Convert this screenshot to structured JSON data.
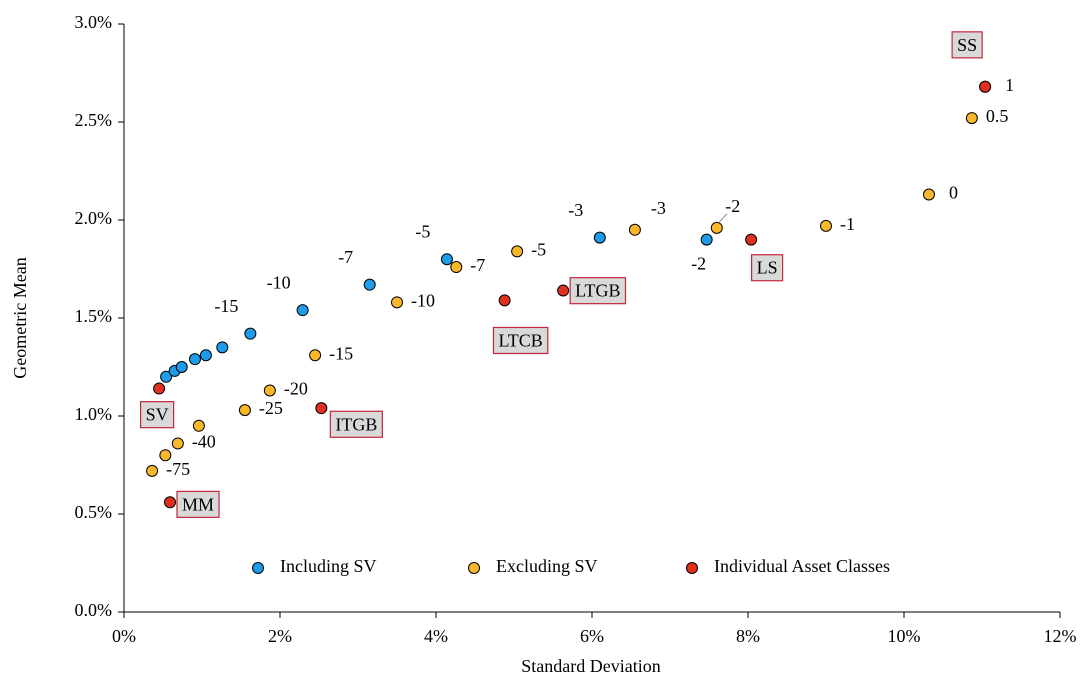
{
  "chart_data": {
    "type": "scatter",
    "xlabel": "Standard Deviation",
    "ylabel": "Geometric Mean",
    "xlim": [
      0,
      12
    ],
    "ylim": [
      0,
      3
    ],
    "xticks": [
      {
        "value": 0,
        "label": "0%"
      },
      {
        "value": 2,
        "label": "2%"
      },
      {
        "value": 4,
        "label": "4%"
      },
      {
        "value": 6,
        "label": "6%"
      },
      {
        "value": 8,
        "label": "8%"
      },
      {
        "value": 10,
        "label": "10%"
      },
      {
        "value": 12,
        "label": "12%"
      }
    ],
    "yticks": [
      {
        "value": 0,
        "label": "0.0%"
      },
      {
        "value": 0.5,
        "label": "0.5%"
      },
      {
        "value": 1,
        "label": "1.0%"
      },
      {
        "value": 1.5,
        "label": "1.5%"
      },
      {
        "value": 2,
        "label": "2.0%"
      },
      {
        "value": 2.5,
        "label": "2.5%"
      },
      {
        "value": 3,
        "label": "3.0%"
      }
    ],
    "legend": "bottom",
    "series": [
      {
        "name": "Including SV",
        "color": "#1e9be9",
        "x": [
          0.54,
          0.65,
          0.74,
          0.91,
          1.05,
          1.26,
          1.62,
          2.29,
          3.15,
          4.14,
          6.1,
          7.47
        ],
        "values": [
          1.2,
          1.23,
          1.25,
          1.29,
          1.31,
          1.35,
          1.42,
          1.54,
          1.67,
          1.8,
          1.91,
          1.9
        ],
        "point_labels": [
          null,
          null,
          null,
          null,
          null,
          null,
          "-15",
          "-10",
          "-7",
          "-5",
          "-3",
          "-2"
        ]
      },
      {
        "name": "Excluding SV",
        "color": "#f9b82a",
        "x": [
          0.36,
          0.53,
          0.69,
          0.96,
          1.55,
          1.87,
          2.45,
          3.5,
          4.26,
          5.04,
          6.55,
          7.6,
          9.0,
          10.32,
          10.87,
          11.04
        ],
        "values": [
          0.72,
          0.8,
          0.86,
          0.95,
          1.03,
          1.13,
          1.31,
          1.58,
          1.76,
          1.84,
          1.95,
          1.96,
          1.97,
          2.13,
          2.52,
          2.68
        ],
        "point_labels": [
          "-75",
          null,
          "-40",
          null,
          "-25",
          "-20",
          "-15",
          "-10",
          "-7",
          "-5",
          "-3",
          "-2",
          "-1",
          "0",
          "0.5",
          "1"
        ]
      },
      {
        "name": "Individual Asset Classes",
        "color": "#e0301e",
        "x": [
          0.45,
          0.59,
          2.53,
          4.88,
          5.63,
          8.04,
          11.04
        ],
        "values": [
          1.14,
          0.56,
          1.04,
          1.59,
          1.64,
          1.9,
          2.68
        ],
        "point_labels": [
          "SV",
          "MM",
          "ITGB",
          "LTCB",
          "LTGB",
          "LS",
          "SS"
        ]
      }
    ]
  }
}
